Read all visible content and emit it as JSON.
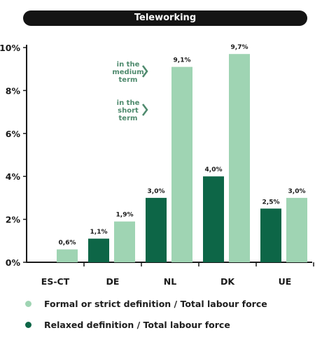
{
  "title": "Teleworking",
  "chart_data": {
    "type": "bar",
    "categories": [
      "ES-CT",
      "DE",
      "NL",
      "DK",
      "UE"
    ],
    "series": [
      {
        "name": "Relaxed definition / Total labour force",
        "color": "#0d6647",
        "values": [
          null,
          1.1,
          3.0,
          4.0,
          2.5
        ],
        "labels": [
          "",
          "1,1%",
          "3,0%",
          "4,0%",
          "2,5%"
        ]
      },
      {
        "name": "Formal or strict definition / Total labour force",
        "color": "#9fd4b3",
        "values": [
          0.6,
          1.9,
          9.1,
          9.7,
          3.0
        ],
        "labels": [
          "0,6%",
          "1,9%",
          "9,1%",
          "9,7%",
          "3,0%"
        ]
      }
    ],
    "yticks": [
      {
        "value": 0,
        "label": "0%"
      },
      {
        "value": 2,
        "label": "2%"
      },
      {
        "value": 4,
        "label": "4%"
      },
      {
        "value": 6,
        "label": "6%"
      },
      {
        "value": 8,
        "label": "8%"
      },
      {
        "value": 10,
        "label": "10%"
      }
    ],
    "ylim": [
      0,
      10
    ],
    "grid": false,
    "annotations": [
      {
        "lines": [
          "in the",
          "medium",
          "term"
        ],
        "color": "#4e8a6d"
      },
      {
        "lines": [
          "in the",
          "short",
          "term"
        ],
        "color": "#4e8a6d"
      }
    ]
  },
  "legend": [
    {
      "label": "Formal or strict definition / Total labour force",
      "color": "#9fd4b3"
    },
    {
      "label": "Relaxed definition / Total labour force",
      "color": "#0d6647"
    }
  ]
}
